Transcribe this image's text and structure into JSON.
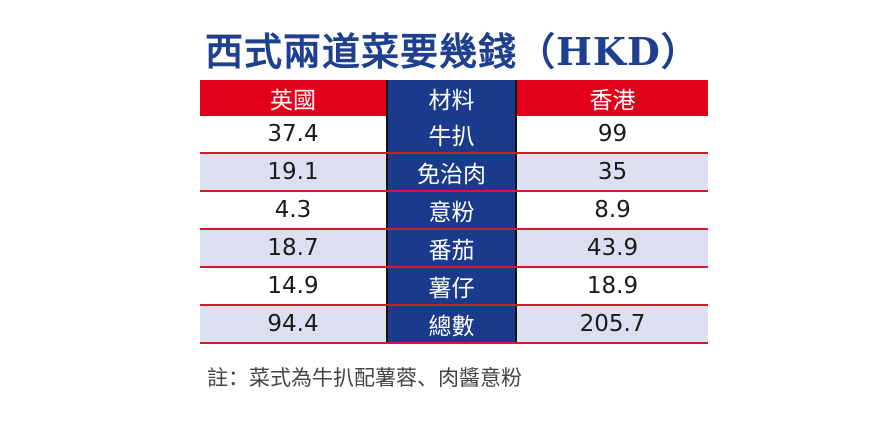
{
  "chart_data": {
    "type": "table",
    "title": "西式兩道菜要幾錢（HKD）",
    "columns": [
      "英國",
      "材料",
      "香港"
    ],
    "rows": [
      [
        "37.4",
        "牛扒",
        "99"
      ],
      [
        "19.1",
        "免治肉",
        "35"
      ],
      [
        "4.3",
        "意粉",
        "8.9"
      ],
      [
        "18.7",
        "番茄",
        "43.9"
      ],
      [
        "14.9",
        "薯仔",
        "18.9"
      ],
      [
        "94.4",
        "總數",
        "205.7"
      ]
    ],
    "note": "註：菜式為牛扒配薯蓉、肉醬意粉"
  },
  "colors": {
    "title": "#1f3f8f",
    "header_bg": "#e3001b",
    "middle_column_bg": "#1a3a8c",
    "band_bg": "#dcdff0",
    "row_divider": "#d21a2a"
  }
}
